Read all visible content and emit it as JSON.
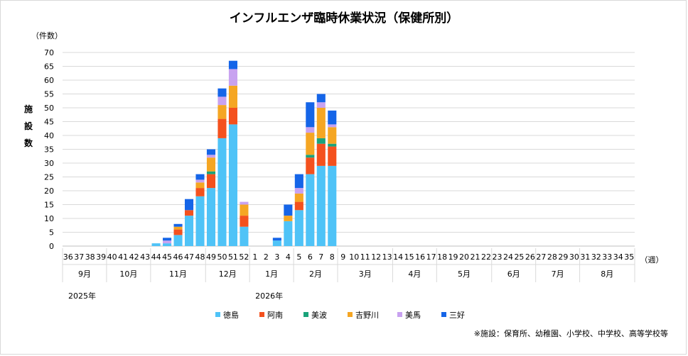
{
  "chart_data": {
    "type": "bar",
    "stacked": true,
    "title": "インフルエンザ臨時休業状況（保健所別）",
    "ylabel_unit": "（件数）",
    "ylabel": [
      "施",
      "設",
      "数"
    ],
    "xlabel_unit": "（週）",
    "ylim": [
      0,
      70
    ],
    "yticks": [
      0,
      5,
      10,
      15,
      20,
      25,
      30,
      35,
      40,
      45,
      50,
      55,
      60,
      65,
      70
    ],
    "weeks": [
      "36",
      "37",
      "38",
      "39",
      "40",
      "41",
      "42",
      "43",
      "44",
      "45",
      "46",
      "47",
      "48",
      "49",
      "50",
      "51",
      "52",
      "1",
      "2",
      "3",
      "4",
      "5",
      "6",
      "7",
      "8",
      "9",
      "10",
      "11",
      "12",
      "13",
      "14",
      "15",
      "16",
      "17",
      "18",
      "19",
      "20",
      "21",
      "22",
      "23",
      "24",
      "25",
      "26",
      "27",
      "28",
      "29",
      "30",
      "31",
      "32",
      "33",
      "34",
      "35"
    ],
    "months": [
      {
        "label": "9月",
        "span": 4
      },
      {
        "label": "10月",
        "span": 4
      },
      {
        "label": "11月",
        "span": 5
      },
      {
        "label": "12月",
        "span": 4
      },
      {
        "label": "1月",
        "span": 4
      },
      {
        "label": "2月",
        "span": 4
      },
      {
        "label": "3月",
        "span": 5
      },
      {
        "label": "4月",
        "span": 4
      },
      {
        "label": "5月",
        "span": 5
      },
      {
        "label": "6月",
        "span": 4
      },
      {
        "label": "7月",
        "span": 4
      },
      {
        "label": "8月",
        "span": 5
      }
    ],
    "years": [
      {
        "label": "2025年",
        "week_index": 0
      },
      {
        "label": "2026年",
        "week_index": 17
      }
    ],
    "series": [
      {
        "name": "徳島",
        "color": "#4fc3f7",
        "values": [
          0,
          0,
          0,
          0,
          0,
          0,
          0,
          0,
          1,
          1,
          4,
          11,
          18,
          21,
          39,
          44,
          7,
          0,
          0,
          2,
          9,
          13,
          26,
          29,
          29,
          0,
          0,
          0,
          0,
          0,
          0,
          0,
          0,
          0,
          0,
          0,
          0,
          0,
          0,
          0,
          0,
          0,
          0,
          0,
          0,
          0,
          0,
          0,
          0,
          0,
          0,
          0
        ]
      },
      {
        "name": "阿南",
        "color": "#f4511e",
        "values": [
          0,
          0,
          0,
          0,
          0,
          0,
          0,
          0,
          0,
          0,
          2,
          2,
          3,
          5,
          7,
          6,
          4,
          0,
          0,
          0,
          0,
          3,
          6,
          8,
          7,
          0,
          0,
          0,
          0,
          0,
          0,
          0,
          0,
          0,
          0,
          0,
          0,
          0,
          0,
          0,
          0,
          0,
          0,
          0,
          0,
          0,
          0,
          0,
          0,
          0,
          0,
          0
        ]
      },
      {
        "name": "美波",
        "color": "#1aa37a",
        "values": [
          0,
          0,
          0,
          0,
          0,
          0,
          0,
          0,
          0,
          0,
          0,
          0,
          0,
          1,
          0,
          0,
          0,
          0,
          0,
          0,
          0,
          0,
          1,
          2,
          1,
          0,
          0,
          0,
          0,
          0,
          0,
          0,
          0,
          0,
          0,
          0,
          0,
          0,
          0,
          0,
          0,
          0,
          0,
          0,
          0,
          0,
          0,
          0,
          0,
          0,
          0,
          0
        ]
      },
      {
        "name": "吉野川",
        "color": "#f5a623",
        "values": [
          0,
          0,
          0,
          0,
          0,
          0,
          0,
          0,
          0,
          0,
          1,
          0,
          2,
          5,
          5,
          8,
          4,
          0,
          0,
          0,
          2,
          3,
          8,
          11,
          6,
          0,
          0,
          0,
          0,
          0,
          0,
          0,
          0,
          0,
          0,
          0,
          0,
          0,
          0,
          0,
          0,
          0,
          0,
          0,
          0,
          0,
          0,
          0,
          0,
          0,
          0,
          0
        ]
      },
      {
        "name": "美馬",
        "color": "#c8a2f0",
        "values": [
          0,
          0,
          0,
          0,
          0,
          0,
          0,
          0,
          0,
          1,
          0,
          0,
          1,
          1,
          3,
          6,
          1,
          0,
          0,
          0,
          0,
          2,
          2,
          2,
          1,
          0,
          0,
          0,
          0,
          0,
          0,
          0,
          0,
          0,
          0,
          0,
          0,
          0,
          0,
          0,
          0,
          0,
          0,
          0,
          0,
          0,
          0,
          0,
          0,
          0,
          0,
          0
        ]
      },
      {
        "name": "三好",
        "color": "#1565e8",
        "values": [
          0,
          0,
          0,
          0,
          0,
          0,
          0,
          0,
          0,
          1,
          1,
          4,
          2,
          2,
          3,
          3,
          0,
          0,
          0,
          1,
          4,
          5,
          9,
          3,
          5,
          0,
          0,
          0,
          0,
          0,
          0,
          0,
          0,
          0,
          0,
          0,
          0,
          0,
          0,
          0,
          0,
          0,
          0,
          0,
          0,
          0,
          0,
          0,
          0,
          0,
          0,
          0
        ]
      }
    ],
    "grid": true,
    "legend_position": "bottom",
    "note": "※施設：保育所、幼稚園、小学校、中学校、高等学校等"
  }
}
